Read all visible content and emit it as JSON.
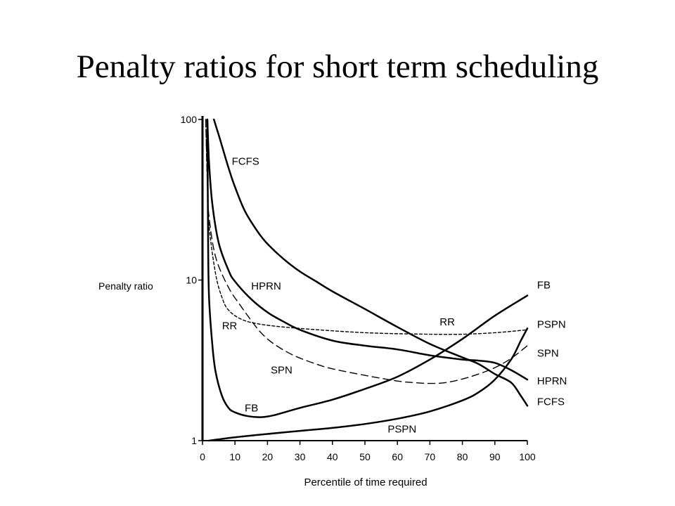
{
  "slide": {
    "title": "Penalty ratios for short term scheduling"
  },
  "chart_data": {
    "type": "line",
    "title": "",
    "xlabel": "Percentile of time required",
    "ylabel": "Penalty ratio",
    "xlim": [
      0,
      100
    ],
    "ylim": [
      1,
      100
    ],
    "yscale": "log",
    "grid": false,
    "legend": "none",
    "x_ticks": [
      0,
      10,
      20,
      30,
      40,
      50,
      60,
      70,
      80,
      90,
      100
    ],
    "y_ticks": [
      1,
      10,
      100
    ],
    "series": [
      {
        "name": "FCFS",
        "style": "solid",
        "points": [
          [
            3.5,
            100
          ],
          [
            5,
            80
          ],
          [
            8,
            50
          ],
          [
            10,
            38
          ],
          [
            13,
            27
          ],
          [
            17,
            20
          ],
          [
            20,
            16.8
          ],
          [
            25,
            13.5
          ],
          [
            30,
            11.3
          ],
          [
            35,
            9.8
          ],
          [
            40,
            8.5
          ],
          [
            50,
            6.6
          ],
          [
            60,
            5.1
          ],
          [
            70,
            4
          ],
          [
            80,
            3.3
          ],
          [
            85,
            3
          ],
          [
            90,
            2.6
          ],
          [
            95,
            2.3
          ],
          [
            98,
            1.9
          ],
          [
            100,
            1.65
          ]
        ],
        "labels": [
          {
            "text": "FCFS",
            "x": 9,
            "y": 55
          },
          {
            "text": "FCFS",
            "x": 103,
            "y": 1.75
          }
        ]
      },
      {
        "name": "HPRN",
        "style": "solid",
        "points": [
          [
            1.5,
            100
          ],
          [
            2,
            55
          ],
          [
            3,
            30
          ],
          [
            5,
            17
          ],
          [
            8,
            11.5
          ],
          [
            10,
            9.8
          ],
          [
            15,
            7.6
          ],
          [
            20,
            6.3
          ],
          [
            25,
            5.5
          ],
          [
            30,
            4.9
          ],
          [
            40,
            4.2
          ],
          [
            50,
            3.9
          ],
          [
            60,
            3.7
          ],
          [
            70,
            3.4
          ],
          [
            80,
            3.2
          ],
          [
            85,
            3.15
          ],
          [
            90,
            3.05
          ],
          [
            95,
            2.75
          ],
          [
            100,
            2.4
          ]
        ],
        "labels": [
          {
            "text": "HPRN",
            "x": 15,
            "y": 9.2
          },
          {
            "text": "HPRN",
            "x": 103,
            "y": 2.35
          }
        ]
      },
      {
        "name": "RR",
        "style": "short-dash",
        "points": [
          [
            1,
            100
          ],
          [
            1.5,
            40
          ],
          [
            2,
            22
          ],
          [
            4,
            11
          ],
          [
            6,
            7.8
          ],
          [
            8,
            6.5
          ],
          [
            12,
            5.7
          ],
          [
            18,
            5.3
          ],
          [
            30,
            5
          ],
          [
            50,
            4.7
          ],
          [
            70,
            4.6
          ],
          [
            80,
            4.6
          ],
          [
            90,
            4.7
          ],
          [
            100,
            4.9
          ]
        ],
        "labels": [
          {
            "text": "RR",
            "x": 6,
            "y": 5.2
          },
          {
            "text": "RR",
            "x": 73,
            "y": 5.5
          }
        ]
      },
      {
        "name": "SPN",
        "style": "long-dash",
        "points": [
          [
            1,
            100
          ],
          [
            1.5,
            40
          ],
          [
            2,
            25
          ],
          [
            4,
            14
          ],
          [
            8,
            9
          ],
          [
            12,
            6.8
          ],
          [
            15,
            5.6
          ],
          [
            18,
            4.7
          ],
          [
            22,
            4
          ],
          [
            28,
            3.4
          ],
          [
            35,
            3
          ],
          [
            40,
            2.8
          ],
          [
            50,
            2.55
          ],
          [
            60,
            2.35
          ],
          [
            65,
            2.3
          ],
          [
            70,
            2.27
          ],
          [
            75,
            2.3
          ],
          [
            80,
            2.42
          ],
          [
            85,
            2.6
          ],
          [
            90,
            2.85
          ],
          [
            95,
            3.25
          ],
          [
            100,
            3.9
          ]
        ],
        "labels": [
          {
            "text": "SPN",
            "x": 21,
            "y": 2.75
          },
          {
            "text": "SPN",
            "x": 103,
            "y": 3.5
          }
        ]
      },
      {
        "name": "FB",
        "style": "solid",
        "points": [
          [
            1.5,
            100
          ],
          [
            1.7,
            20
          ],
          [
            2,
            8
          ],
          [
            3,
            4
          ],
          [
            4,
            2.7
          ],
          [
            6,
            1.9
          ],
          [
            8,
            1.6
          ],
          [
            10,
            1.5
          ],
          [
            14,
            1.42
          ],
          [
            18,
            1.4
          ],
          [
            22,
            1.44
          ],
          [
            30,
            1.6
          ],
          [
            40,
            1.8
          ],
          [
            50,
            2.1
          ],
          [
            60,
            2.5
          ],
          [
            70,
            3.2
          ],
          [
            80,
            4.3
          ],
          [
            90,
            6
          ],
          [
            100,
            8
          ]
        ],
        "labels": [
          {
            "text": "FB",
            "x": 13,
            "y": 1.6
          },
          {
            "text": "FB",
            "x": 103,
            "y": 9.3
          }
        ]
      },
      {
        "name": "PSPN",
        "style": "solid",
        "points": [
          [
            2,
            1
          ],
          [
            10,
            1.05
          ],
          [
            20,
            1.1
          ],
          [
            30,
            1.15
          ],
          [
            40,
            1.2
          ],
          [
            50,
            1.27
          ],
          [
            60,
            1.37
          ],
          [
            70,
            1.52
          ],
          [
            80,
            1.78
          ],
          [
            85,
            2
          ],
          [
            90,
            2.4
          ],
          [
            95,
            3.2
          ],
          [
            98,
            4.2
          ],
          [
            100,
            5
          ]
        ],
        "labels": [
          {
            "text": "PSPN",
            "x": 57,
            "y": 1.18
          },
          {
            "text": "PSPN",
            "x": 103,
            "y": 5.3
          }
        ]
      }
    ]
  }
}
